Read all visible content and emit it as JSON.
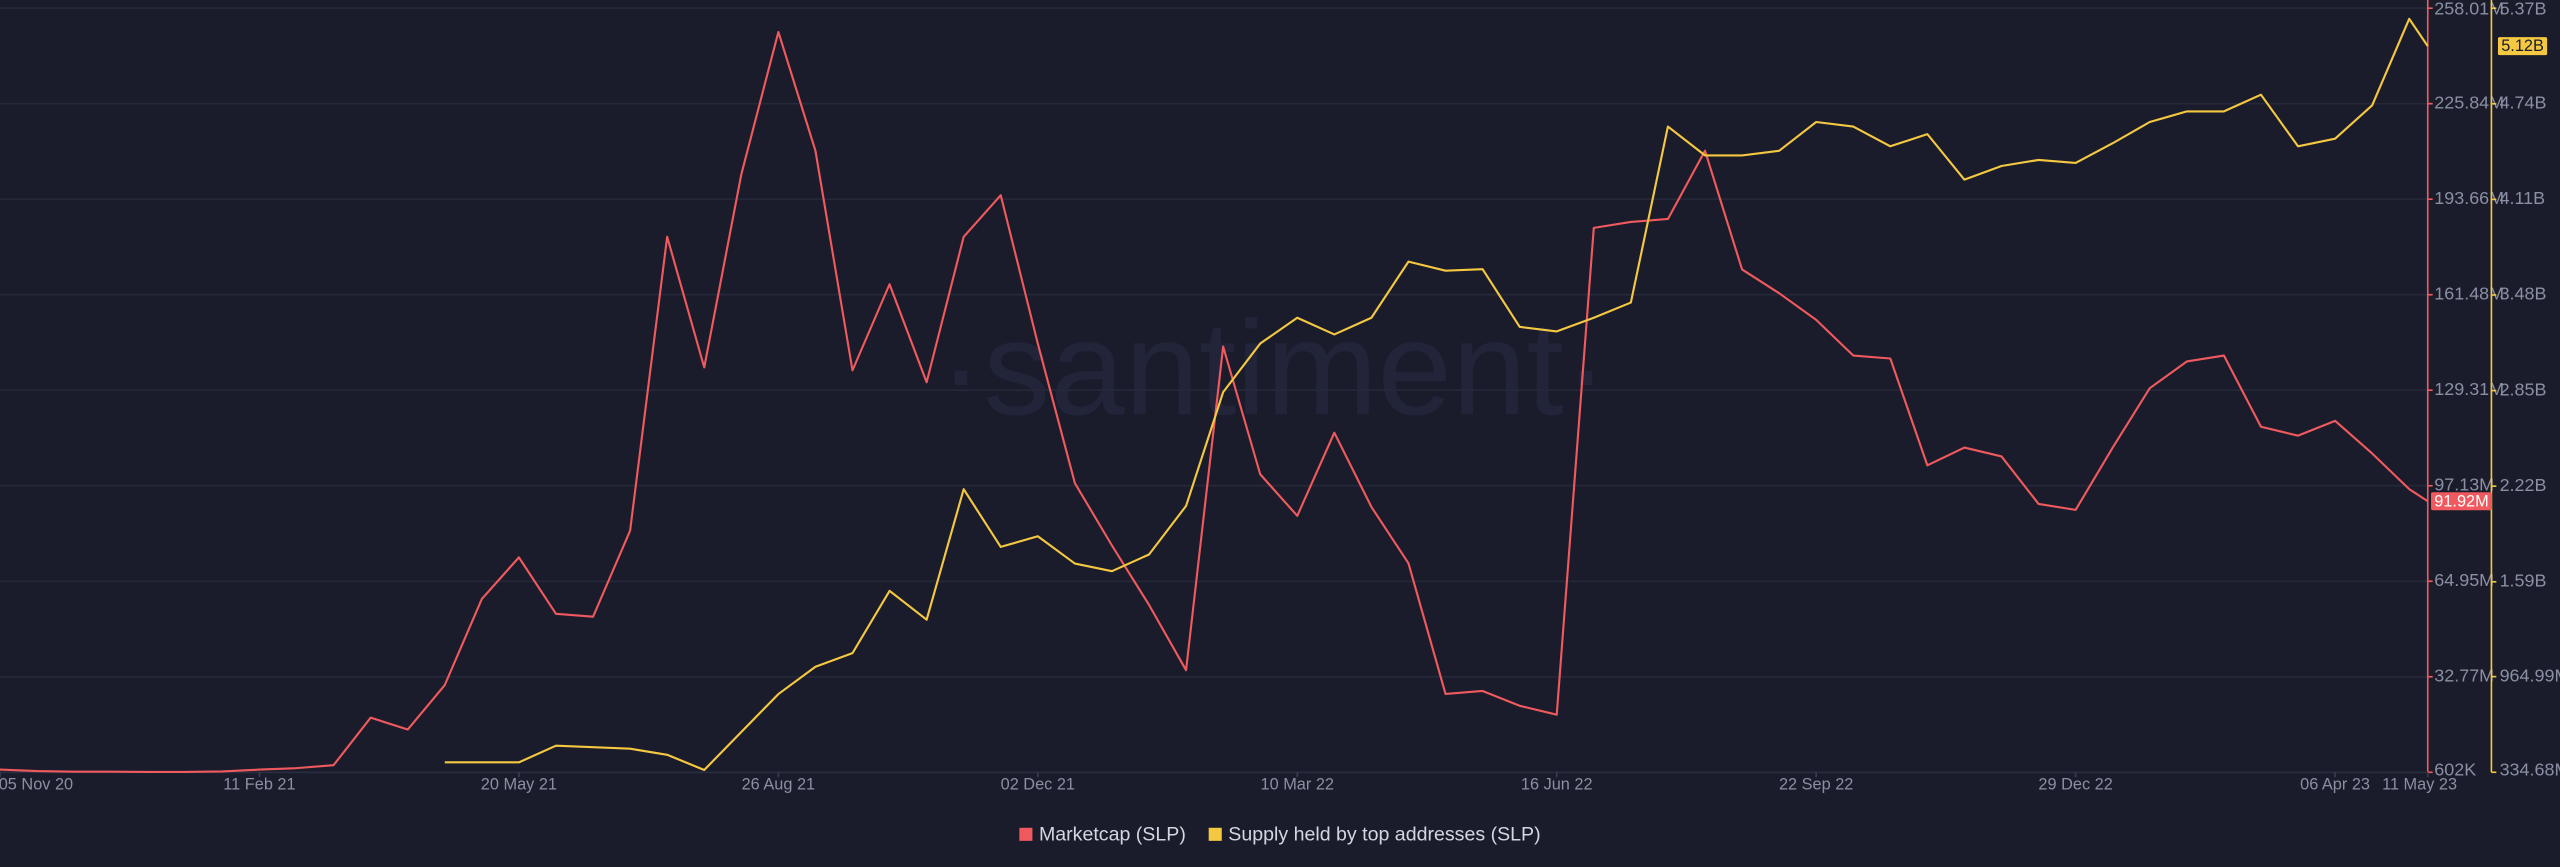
{
  "chart_data": {
    "type": "line",
    "watermark": "·santiment·",
    "x": [
      "2020-11-05",
      "2020-11-19",
      "2020-12-03",
      "2020-12-17",
      "2020-12-31",
      "2021-01-14",
      "2021-01-28",
      "2021-02-11",
      "2021-02-25",
      "2021-03-11",
      "2021-03-25",
      "2021-04-08",
      "2021-04-22",
      "2021-05-06",
      "2021-05-20",
      "2021-06-03",
      "2021-06-17",
      "2021-07-01",
      "2021-07-15",
      "2021-07-29",
      "2021-08-12",
      "2021-08-26",
      "2021-09-09",
      "2021-09-23",
      "2021-10-07",
      "2021-10-21",
      "2021-11-04",
      "2021-11-18",
      "2021-12-02",
      "2021-12-16",
      "2021-12-30",
      "2022-01-13",
      "2022-01-27",
      "2022-02-10",
      "2022-02-24",
      "2022-03-10",
      "2022-03-24",
      "2022-04-07",
      "2022-04-21",
      "2022-05-05",
      "2022-05-19",
      "2022-06-02",
      "2022-06-16",
      "2022-06-30",
      "2022-07-14",
      "2022-07-28",
      "2022-08-11",
      "2022-08-25",
      "2022-09-08",
      "2022-09-22",
      "2022-10-06",
      "2022-10-20",
      "2022-11-03",
      "2022-11-17",
      "2022-12-01",
      "2022-12-15",
      "2022-12-29",
      "2023-01-12",
      "2023-01-26",
      "2023-02-09",
      "2023-02-23",
      "2023-03-09",
      "2023-03-23",
      "2023-04-06",
      "2023-04-20",
      "2023-05-04",
      "2023-05-11"
    ],
    "xlim": [
      "2020-11-05",
      "2023-05-11"
    ],
    "xticks": [
      {
        "value": "2020-11-05",
        "label": "05 Nov 20"
      },
      {
        "value": "2021-02-11",
        "label": "11 Feb 21"
      },
      {
        "value": "2021-05-20",
        "label": "20 May 21"
      },
      {
        "value": "2021-08-26",
        "label": "26 Aug 21"
      },
      {
        "value": "2021-12-02",
        "label": "02 Dec 21"
      },
      {
        "value": "2022-03-10",
        "label": "10 Mar 22"
      },
      {
        "value": "2022-06-16",
        "label": "16 Jun 22"
      },
      {
        "value": "2022-09-22",
        "label": "22 Sep 22"
      },
      {
        "value": "2022-12-29",
        "label": "29 Dec 22"
      },
      {
        "value": "2023-04-06",
        "label": "06 Apr 23"
      },
      {
        "value": "2023-05-11",
        "label": "11 May 23"
      }
    ],
    "ylim": [
      602000,
      258010000
    ],
    "yticks": [
      {
        "value": 602000,
        "label": "602K"
      },
      {
        "value": 32770000,
        "label": "32.77M"
      },
      {
        "value": 64950000,
        "label": "64.95M"
      },
      {
        "value": 97130000,
        "label": "97.13M"
      },
      {
        "value": 129310000,
        "label": "129.31M"
      },
      {
        "value": 161480000,
        "label": "161.48M"
      },
      {
        "value": 193660000,
        "label": "193.66M"
      },
      {
        "value": 225840000,
        "label": "225.84M"
      },
      {
        "value": 258010000,
        "label": "258.01M"
      }
    ],
    "y2lim": [
      334680000,
      5370000000
    ],
    "y2ticks": [
      {
        "value": 334680000,
        "label": "334.68M"
      },
      {
        "value": 964990000,
        "label": "964.99M"
      },
      {
        "value": 1590000000,
        "label": "1.59B"
      },
      {
        "value": 2220000000,
        "label": "2.22B"
      },
      {
        "value": 2850000000,
        "label": "2.85B"
      },
      {
        "value": 3480000000,
        "label": "3.48B"
      },
      {
        "value": 4110000000,
        "label": "4.11B"
      },
      {
        "value": 4740000000,
        "label": "4.74B"
      },
      {
        "value": 5370000000,
        "label": "5.37B"
      }
    ],
    "grid": true,
    "legend": "bottom",
    "series": [
      {
        "name": "Marketcap (SLP)",
        "color": "#f05a5e",
        "values": [
          1500000.0,
          1000000.0,
          800000.0,
          800000.0,
          700000.0,
          700000.0,
          900000.0,
          1500000.0,
          2000000.0,
          3000000.0,
          19000000.0,
          15000000.0,
          30000000.0,
          59000000.0,
          73000000.0,
          54000000.0,
          53000000.0,
          82000000.0,
          181000000.0,
          137000000.0,
          202000000.0,
          250000000.0,
          210000000.0,
          136000000.0,
          165000000.0,
          132000000.0,
          181000000.0,
          195000000.0,
          145000000.0,
          98000000.0,
          77000000.0,
          57000000.0,
          35000000.0,
          144000000.0,
          101000000.0,
          87000000.0,
          115000000.0,
          90000000.0,
          71000000.0,
          27000000.0,
          28000000.0,
          23000000.0,
          20000000.0,
          184000000.0,
          186000000.0,
          187000000.0,
          210000000.0,
          170000000.0,
          162000000.0,
          153000000.0,
          141000000.0,
          140000000.0,
          104000000.0,
          110000000.0,
          107000000.0,
          91000000.0,
          89000000.0,
          110000000.0,
          130000000.0,
          139000000.0,
          141000000.0,
          117000000.0,
          114000000.0,
          119000000.0,
          108000000.0,
          96000000.0,
          91920000.0
        ],
        "value_labels": [
          null,
          null,
          null,
          null,
          null,
          null,
          null,
          null,
          null,
          null,
          null,
          null,
          null,
          null,
          null,
          null,
          null,
          null,
          null,
          null,
          null,
          null,
          null,
          null,
          null,
          null,
          null,
          null,
          null,
          null,
          null,
          null,
          null,
          null,
          null,
          null,
          null,
          null,
          null,
          null,
          null,
          null,
          null,
          null,
          null,
          null,
          null,
          null,
          null,
          null,
          null,
          null,
          null,
          null,
          null,
          null,
          null,
          null,
          null,
          null,
          null,
          null,
          null,
          null,
          null,
          null,
          "91.92M"
        ]
      },
      {
        "name": "Supply held by top addresses (SLP)",
        "color": "#f5c842",
        "axis": "y2",
        "values": [
          null,
          null,
          null,
          null,
          null,
          null,
          null,
          null,
          null,
          null,
          null,
          null,
          400000000.0,
          400000000.0,
          400000000.0,
          510000000.0,
          500000000.0,
          490000000.0,
          450000000.0,
          350000000.0,
          600000000.0,
          850000000.0,
          1030000000.0,
          1120000000.0,
          1530000000.0,
          1340000000.0,
          2200000000.0,
          1820000000.0,
          1890000000.0,
          1710000000.0,
          1660000000.0,
          1770000000.0,
          2090000000.0,
          2840000000.0,
          3160000000.0,
          3330000000.0,
          3220000000.0,
          3330000000.0,
          3700000000.0,
          3640000000.0,
          3650000000.0,
          3270000000.0,
          3240000000.0,
          3330000000.0,
          3430000000.0,
          4590000000.0,
          4400000000.0,
          4400000000.0,
          4430000000.0,
          4620000000.0,
          4590000000.0,
          4460000000.0,
          4540000000.0,
          4240000000.0,
          4330000000.0,
          4370000000.0,
          4350000000.0,
          4480000000.0,
          4620000000.0,
          4690000000.0,
          4690000000.0,
          4800000000.0,
          4460000000.0,
          4510000000.0,
          4730000000.0,
          5300000000.0,
          5120000000.0
        ],
        "value_labels": [
          null,
          null,
          null,
          null,
          null,
          null,
          null,
          null,
          null,
          null,
          null,
          null,
          null,
          null,
          null,
          null,
          null,
          null,
          null,
          null,
          null,
          null,
          null,
          null,
          null,
          null,
          null,
          null,
          null,
          null,
          null,
          null,
          null,
          null,
          null,
          null,
          null,
          null,
          null,
          null,
          null,
          null,
          null,
          null,
          null,
          null,
          null,
          null,
          null,
          null,
          null,
          null,
          null,
          null,
          null,
          null,
          null,
          null,
          null,
          null,
          null,
          null,
          null,
          null,
          null,
          null,
          "5.12B"
        ]
      }
    ]
  }
}
